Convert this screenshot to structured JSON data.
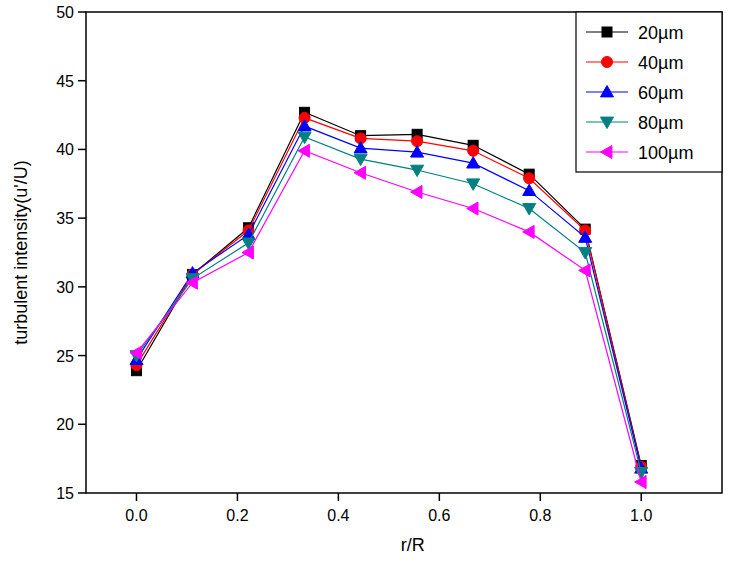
{
  "chart_data": {
    "type": "line",
    "x_label": "r/R",
    "y_label": "turbulent intensity(u'/U)",
    "x": [
      0,
      0.111,
      0.222,
      0.333,
      0.444,
      0.556,
      0.667,
      0.778,
      0.889,
      1.0
    ],
    "series": [
      {
        "name": "20µm",
        "color": "#000000",
        "marker": "square",
        "values": [
          23.9,
          30.9,
          34.3,
          42.7,
          41.0,
          41.1,
          40.3,
          38.2,
          34.2,
          17.0
        ]
      },
      {
        "name": "40µm",
        "color": "#ff0000",
        "marker": "circle",
        "values": [
          24.3,
          30.9,
          34.1,
          42.3,
          40.8,
          40.6,
          39.9,
          37.9,
          34.1,
          16.9
        ]
      },
      {
        "name": "60µm",
        "color": "#0000ff",
        "marker": "triangle-up",
        "values": [
          24.7,
          31.0,
          33.8,
          41.7,
          40.1,
          39.8,
          39.0,
          37.0,
          33.6,
          16.8
        ]
      },
      {
        "name": "80µm",
        "color": "#008080",
        "marker": "triangle-down",
        "values": [
          25.0,
          30.6,
          33.2,
          40.9,
          39.3,
          38.5,
          37.5,
          35.7,
          32.5,
          16.5
        ]
      },
      {
        "name": "100µm",
        "color": "#ff00ff",
        "marker": "triangle-left",
        "values": [
          25.2,
          30.3,
          32.5,
          39.9,
          38.3,
          36.9,
          35.7,
          34.0,
          31.2,
          15.8
        ]
      }
    ],
    "xlim": [
      -0.1,
      1.16
    ],
    "xticks": [
      {
        "value": 0,
        "label": "0.0"
      },
      {
        "value": 0.2,
        "label": "0.2"
      },
      {
        "value": 0.4,
        "label": "0.4"
      },
      {
        "value": 0.6,
        "label": "0.6"
      },
      {
        "value": 0.8,
        "label": "0.8"
      },
      {
        "value": 1.0,
        "label": "1.0"
      }
    ],
    "ylim": [
      15,
      50
    ],
    "yticks": [
      15,
      20,
      25,
      30,
      35,
      40,
      45,
      50
    ],
    "legend": "top-right",
    "grid": false
  }
}
